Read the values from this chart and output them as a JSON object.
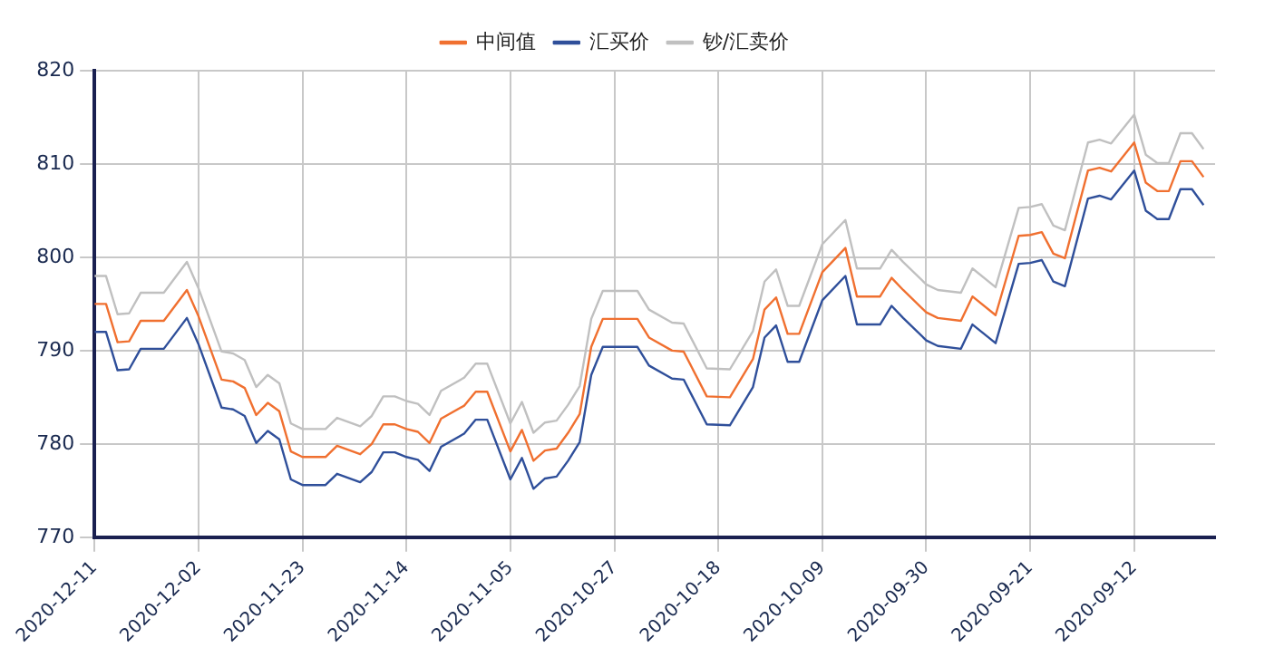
{
  "chart_data": {
    "type": "line",
    "x": [
      "2020-12-11",
      "2020-12-10",
      "2020-12-09",
      "2020-12-08",
      "2020-12-07",
      "2020-12-05",
      "2020-12-03",
      "2020-12-02",
      "2020-11-30",
      "2020-11-29",
      "2020-11-28",
      "2020-11-27",
      "2020-11-26",
      "2020-11-25",
      "2020-11-24",
      "2020-11-23",
      "2020-11-21",
      "2020-11-20",
      "2020-11-18",
      "2020-11-17",
      "2020-11-16",
      "2020-11-15",
      "2020-11-14",
      "2020-11-13",
      "2020-11-12",
      "2020-11-11",
      "2020-11-09",
      "2020-11-08",
      "2020-11-07",
      "2020-11-05",
      "2020-11-04",
      "2020-11-03",
      "2020-11-02",
      "2020-11-01",
      "2020-10-31",
      "2020-10-30",
      "2020-10-29",
      "2020-10-28",
      "2020-10-25",
      "2020-10-24",
      "2020-10-22",
      "2020-10-21",
      "2020-10-19",
      "2020-10-17",
      "2020-10-15",
      "2020-10-14",
      "2020-10-13",
      "2020-10-12",
      "2020-10-11",
      "2020-10-09",
      "2020-10-07",
      "2020-10-06",
      "2020-10-04",
      "2020-10-03",
      "2020-10-02",
      "2020-09-30",
      "2020-09-29",
      "2020-09-27",
      "2020-09-26",
      "2020-09-24",
      "2020-09-22",
      "2020-09-21",
      "2020-09-20",
      "2020-09-19",
      "2020-09-18",
      "2020-09-16",
      "2020-09-15",
      "2020-09-14",
      "2020-09-12",
      "2020-09-11",
      "2020-09-10",
      "2020-09-09",
      "2020-09-08",
      "2020-09-07",
      "2020-09-06"
    ],
    "series": [
      {
        "name": "中间值",
        "color": "#f07030",
        "values": [
          795.0,
          795.0,
          790.9,
          791.0,
          793.2,
          793.2,
          796.5,
          793.7,
          786.9,
          786.7,
          786.0,
          783.1,
          784.4,
          783.5,
          779.2,
          778.6,
          778.6,
          779.8,
          778.9,
          780.0,
          782.1,
          782.1,
          781.6,
          781.3,
          780.1,
          782.7,
          784.1,
          785.6,
          785.6,
          779.2,
          781.5,
          778.2,
          779.3,
          779.5,
          781.2,
          783.2,
          790.4,
          793.4,
          793.4,
          791.4,
          790.0,
          789.9,
          785.1,
          785.0,
          789.1,
          794.4,
          795.7,
          791.8,
          791.8,
          798.4,
          801.0,
          795.8,
          795.8,
          797.8,
          796.5,
          794.1,
          793.5,
          793.2,
          795.8,
          793.8,
          802.3,
          802.4,
          802.7,
          800.4,
          799.9,
          809.3,
          809.6,
          809.2,
          812.3,
          808.0,
          807.1,
          807.1,
          810.3,
          810.3,
          808.6
        ]
      },
      {
        "name": "汇买价",
        "color": "#2f4f9a",
        "values": [
          792.0,
          792.0,
          787.9,
          788.0,
          790.2,
          790.2,
          793.5,
          790.7,
          783.9,
          783.7,
          783.0,
          780.1,
          781.4,
          780.5,
          776.2,
          775.6,
          775.6,
          776.8,
          775.9,
          777.0,
          779.1,
          779.1,
          778.6,
          778.3,
          777.1,
          779.7,
          781.1,
          782.6,
          782.6,
          776.2,
          778.5,
          775.2,
          776.3,
          776.5,
          778.2,
          780.2,
          787.4,
          790.4,
          790.4,
          788.4,
          787.0,
          786.9,
          782.1,
          782.0,
          786.1,
          791.4,
          792.7,
          788.8,
          788.8,
          795.4,
          798.0,
          792.8,
          792.8,
          794.8,
          793.5,
          791.1,
          790.5,
          790.2,
          792.8,
          790.8,
          799.3,
          799.4,
          799.7,
          797.4,
          796.9,
          806.3,
          806.6,
          806.2,
          809.3,
          805.0,
          804.1,
          804.1,
          807.3,
          807.3,
          805.6
        ]
      },
      {
        "name": "钞/汇卖价",
        "color": "#c0c0c0",
        "values": [
          798.0,
          798.0,
          793.9,
          794.0,
          796.2,
          796.2,
          799.5,
          796.7,
          789.9,
          789.7,
          789.0,
          786.1,
          787.4,
          786.5,
          782.2,
          781.6,
          781.6,
          782.8,
          781.9,
          783.0,
          785.1,
          785.1,
          784.6,
          784.3,
          783.1,
          785.7,
          787.1,
          788.6,
          788.6,
          782.2,
          784.5,
          781.2,
          782.3,
          782.5,
          784.2,
          786.2,
          793.4,
          796.4,
          796.4,
          794.4,
          793.0,
          792.9,
          788.1,
          788.0,
          792.1,
          797.4,
          798.7,
          794.8,
          794.8,
          801.4,
          804.0,
          798.8,
          798.8,
          800.8,
          799.5,
          797.1,
          796.5,
          796.2,
          798.8,
          796.8,
          805.3,
          805.4,
          805.7,
          803.4,
          802.9,
          812.3,
          812.6,
          812.2,
          815.3,
          811.0,
          810.1,
          810.1,
          813.3,
          813.3,
          811.6
        ]
      }
    ],
    "xlim": [
      "2020-12-11",
      "2020-09-05"
    ],
    "xticks": [
      "2020-12-11",
      "2020-12-02",
      "2020-11-23",
      "2020-11-14",
      "2020-11-05",
      "2020-10-27",
      "2020-10-18",
      "2020-10-09",
      "2020-09-30",
      "2020-09-21",
      "2020-09-12"
    ],
    "ylim": [
      770,
      820
    ],
    "yticks": [
      770,
      780,
      790,
      800,
      810,
      820
    ],
    "grid": true,
    "legend": "top",
    "marker": "none",
    "line_style": "solid"
  }
}
